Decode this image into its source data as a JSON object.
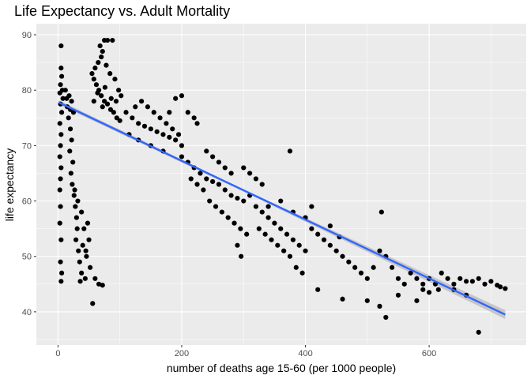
{
  "chart_data": {
    "type": "scatter",
    "title": "Life Expectancy vs. Adult Mortality",
    "xlabel": "number of deaths age 15-60 (per 1000 people)",
    "ylabel": "life expectancy",
    "xlim": [
      -35,
      757
    ],
    "ylim": [
      34,
      92
    ],
    "x_ticks": [
      0,
      200,
      400,
      600
    ],
    "y_ticks": [
      40,
      50,
      60,
      70,
      80,
      90
    ],
    "grid": true,
    "background": "#ebebeb",
    "grid_color": "#ffffff",
    "point_color": "#000000",
    "trend_color": "#3366ff",
    "band_color": "#bdbdbd",
    "trend_line": {
      "x": [
        1,
        723
      ],
      "y": [
        77.8,
        39.5
      ]
    },
    "confidence_band": {
      "x": [
        1,
        300,
        723
      ],
      "lower": [
        77.4,
        61.7,
        38.7
      ],
      "upper": [
        78.2,
        62.1,
        40.3
      ]
    },
    "points": [
      [
        5,
        88.0
      ],
      [
        5,
        84.0
      ],
      [
        6,
        82.5
      ],
      [
        4,
        81.0
      ],
      [
        7,
        80.0
      ],
      [
        3,
        79.5
      ],
      [
        8,
        78.5
      ],
      [
        4,
        77.5
      ],
      [
        6,
        76.0
      ],
      [
        3,
        74.0
      ],
      [
        5,
        72.0
      ],
      [
        4,
        70.0
      ],
      [
        3,
        68.0
      ],
      [
        5,
        66.0
      ],
      [
        4,
        64.0
      ],
      [
        3,
        62.0
      ],
      [
        4,
        59.0
      ],
      [
        3,
        56.0
      ],
      [
        5,
        53.0
      ],
      [
        4,
        49.0
      ],
      [
        6,
        47.0
      ],
      [
        5,
        45.5
      ],
      [
        12,
        80.0
      ],
      [
        14,
        78.5
      ],
      [
        18,
        79.0
      ],
      [
        22,
        78.0
      ],
      [
        15,
        77.0
      ],
      [
        20,
        76.5
      ],
      [
        25,
        76.0
      ],
      [
        17,
        75.0
      ],
      [
        20,
        73.0
      ],
      [
        22,
        71.0
      ],
      [
        19,
        69.0
      ],
      [
        24,
        67.0
      ],
      [
        21,
        65.0
      ],
      [
        23,
        63.0
      ],
      [
        26,
        61.0
      ],
      [
        28,
        59.0
      ],
      [
        30,
        57.0
      ],
      [
        31,
        55.0
      ],
      [
        29,
        53.0
      ],
      [
        33,
        51.0
      ],
      [
        35,
        49.0
      ],
      [
        38,
        47.0
      ],
      [
        36,
        45.5
      ],
      [
        44,
        46.0
      ],
      [
        48,
        56.0
      ],
      [
        50,
        53.0
      ],
      [
        46,
        50.0
      ],
      [
        52,
        48.0
      ],
      [
        56,
        41.5
      ],
      [
        60,
        46.0
      ],
      [
        66,
        45.0
      ],
      [
        72,
        44.8
      ],
      [
        40,
        52.0
      ],
      [
        42,
        55.0
      ],
      [
        38,
        58.0
      ],
      [
        45,
        51.0
      ],
      [
        32,
        60.0
      ],
      [
        27,
        62.0
      ],
      [
        55,
        83.0
      ],
      [
        58,
        82.0
      ],
      [
        62,
        81.0
      ],
      [
        66,
        80.0
      ],
      [
        70,
        79.0
      ],
      [
        75,
        78.0
      ],
      [
        80,
        77.5
      ],
      [
        85,
        76.5
      ],
      [
        90,
        76.0
      ],
      [
        95,
        75.0
      ],
      [
        100,
        74.5
      ],
      [
        60,
        84.0
      ],
      [
        65,
        85.0
      ],
      [
        70,
        86.0
      ],
      [
        72,
        87.0
      ],
      [
        68,
        88.0
      ],
      [
        75,
        89.0
      ],
      [
        80,
        89.0
      ],
      [
        88,
        89.0
      ],
      [
        78,
        84.5
      ],
      [
        84,
        83.0
      ],
      [
        92,
        82.0
      ],
      [
        98,
        80.0
      ],
      [
        64,
        79.5
      ],
      [
        72,
        77.0
      ],
      [
        86,
        78.5
      ],
      [
        94,
        78.0
      ],
      [
        102,
        79.0
      ],
      [
        58,
        78.0
      ],
      [
        76,
        80.5
      ],
      [
        110,
        76.0
      ],
      [
        120,
        75.0
      ],
      [
        130,
        74.0
      ],
      [
        140,
        73.5
      ],
      [
        150,
        73.0
      ],
      [
        160,
        72.5
      ],
      [
        170,
        72.0
      ],
      [
        180,
        71.5
      ],
      [
        190,
        71.0
      ],
      [
        200,
        70.0
      ],
      [
        125,
        77.0
      ],
      [
        135,
        78.0
      ],
      [
        145,
        77.0
      ],
      [
        155,
        76.0
      ],
      [
        165,
        75.0
      ],
      [
        175,
        74.0
      ],
      [
        185,
        73.0
      ],
      [
        195,
        72.0
      ],
      [
        115,
        72.0
      ],
      [
        130,
        71.0
      ],
      [
        150,
        70.0
      ],
      [
        170,
        69.0
      ],
      [
        180,
        76.0
      ],
      [
        190,
        78.5
      ],
      [
        200,
        79.0
      ],
      [
        210,
        76.0
      ],
      [
        220,
        75.0
      ],
      [
        225,
        74.0
      ],
      [
        200,
        68.0
      ],
      [
        210,
        67.0
      ],
      [
        220,
        66.0
      ],
      [
        230,
        65.0
      ],
      [
        240,
        64.0
      ],
      [
        250,
        63.5
      ],
      [
        260,
        63.0
      ],
      [
        270,
        62.0
      ],
      [
        280,
        61.0
      ],
      [
        290,
        60.5
      ],
      [
        300,
        60.0
      ],
      [
        215,
        64.0
      ],
      [
        225,
        63.0
      ],
      [
        235,
        62.0
      ],
      [
        245,
        60.0
      ],
      [
        255,
        59.0
      ],
      [
        265,
        58.0
      ],
      [
        275,
        57.0
      ],
      [
        285,
        56.0
      ],
      [
        295,
        55.0
      ],
      [
        305,
        54.0
      ],
      [
        240,
        69.0
      ],
      [
        250,
        68.0
      ],
      [
        260,
        67.0
      ],
      [
        270,
        66.0
      ],
      [
        280,
        65.0
      ],
      [
        300,
        66.0
      ],
      [
        310,
        65.0
      ],
      [
        320,
        64.0
      ],
      [
        330,
        63.0
      ],
      [
        290,
        52.0
      ],
      [
        296,
        50.0
      ],
      [
        310,
        61.0
      ],
      [
        320,
        59.0
      ],
      [
        330,
        58.0
      ],
      [
        340,
        57.0
      ],
      [
        350,
        56.0
      ],
      [
        360,
        55.0
      ],
      [
        370,
        54.0
      ],
      [
        380,
        53.0
      ],
      [
        390,
        52.0
      ],
      [
        400,
        51.0
      ],
      [
        325,
        55.0
      ],
      [
        335,
        54.0
      ],
      [
        345,
        53.0
      ],
      [
        355,
        52.0
      ],
      [
        365,
        51.0
      ],
      [
        375,
        50.0
      ],
      [
        385,
        48.0
      ],
      [
        395,
        47.0
      ],
      [
        340,
        59.0
      ],
      [
        360,
        60.0
      ],
      [
        380,
        58.0
      ],
      [
        400,
        57.0
      ],
      [
        410,
        55.0
      ],
      [
        420,
        54.0
      ],
      [
        430,
        53.0
      ],
      [
        440,
        52.0
      ],
      [
        450,
        51.0
      ],
      [
        460,
        50.0
      ],
      [
        470,
        49.0
      ],
      [
        480,
        48.0
      ],
      [
        490,
        47.0
      ],
      [
        500,
        46.0
      ],
      [
        510,
        48.0
      ],
      [
        520,
        51.0
      ],
      [
        530,
        50.0
      ],
      [
        540,
        48.0
      ],
      [
        550,
        46.0
      ],
      [
        560,
        45.0
      ],
      [
        570,
        47.0
      ],
      [
        580,
        46.0
      ],
      [
        590,
        45.0
      ],
      [
        600,
        46.0
      ],
      [
        610,
        45.0
      ],
      [
        620,
        47.0
      ],
      [
        630,
        46.0
      ],
      [
        640,
        45.0
      ],
      [
        650,
        46.0
      ],
      [
        660,
        45.5
      ],
      [
        670,
        45.5
      ],
      [
        680,
        46.0
      ],
      [
        690,
        45.0
      ],
      [
        700,
        45.5
      ],
      [
        710,
        44.8
      ],
      [
        715,
        44.5
      ],
      [
        723,
        44.2
      ],
      [
        420,
        44.0
      ],
      [
        460,
        42.3
      ],
      [
        500,
        42.0
      ],
      [
        520,
        41.0
      ],
      [
        530,
        39.0
      ],
      [
        550,
        43.0
      ],
      [
        580,
        42.0
      ],
      [
        680,
        36.3
      ],
      [
        590,
        44.0
      ],
      [
        600,
        43.5
      ],
      [
        615,
        44.0
      ],
      [
        640,
        44.0
      ],
      [
        660,
        43.0
      ],
      [
        375,
        69.0
      ],
      [
        523,
        58.0
      ],
      [
        410,
        59.0
      ],
      [
        440,
        55.5
      ],
      [
        455,
        53.5
      ]
    ]
  }
}
